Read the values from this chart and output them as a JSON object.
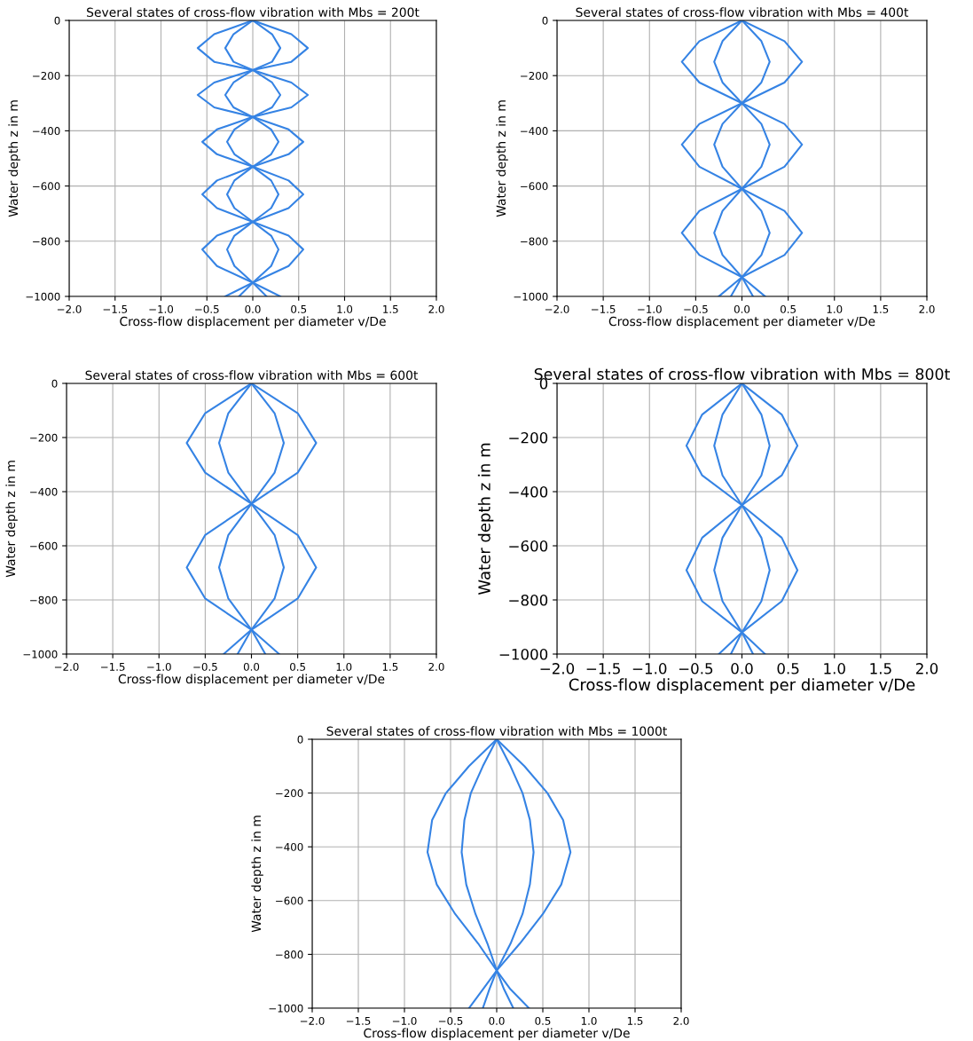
{
  "chart_data": [
    {
      "type": "line",
      "title": "Several states of cross-flow vibration with Mbs = 200t",
      "xlabel": "Cross-flow displacement per diameter v/De",
      "ylabel": "Water depth z in m",
      "xlim": [
        -2,
        2
      ],
      "ylim": [
        -1000,
        0
      ],
      "xticks": [
        {
          "value": -2,
          "label": "−2.0"
        },
        {
          "value": -1.5,
          "label": "−1.5"
        },
        {
          "value": -1,
          "label": "−1.0"
        },
        {
          "value": -0.5,
          "label": "−0.5"
        },
        {
          "value": 0,
          "label": "0.0"
        },
        {
          "value": 0.5,
          "label": "0.5"
        },
        {
          "value": 1,
          "label": "1.0"
        },
        {
          "value": 1.5,
          "label": "1.5"
        },
        {
          "value": 2,
          "label": "2.0"
        }
      ],
      "yticks": [
        {
          "value": -1000,
          "label": "−1000"
        },
        {
          "value": -800,
          "label": "−800"
        },
        {
          "value": -600,
          "label": "−600"
        },
        {
          "value": -400,
          "label": "−400"
        },
        {
          "value": -200,
          "label": "−200"
        },
        0
      ],
      "grid": true,
      "marker": "none",
      "line_style": "solid",
      "series": [
        {
          "color": "#3583e4",
          "x": [
            0,
            0.42,
            0.6,
            0.42,
            0,
            -0.42,
            -0.6,
            -0.42,
            0,
            0.39,
            0.55,
            0.39,
            0,
            -0.39,
            -0.55,
            -0.39,
            0,
            0.39,
            0.55,
            0.39,
            0,
            -0.3
          ],
          "values": [
            0,
            -50,
            -100,
            -150,
            -180,
            -225,
            -270,
            -315,
            -350,
            -395,
            -440,
            -485,
            -530,
            -580,
            -630,
            -680,
            -730,
            -780,
            -830,
            -890,
            -950,
            -1000
          ]
        },
        {
          "color": "#3583e4",
          "x": [
            0,
            0.21,
            0.3,
            0.21,
            0,
            -0.21,
            -0.3,
            -0.21,
            0,
            0.2,
            0.28,
            0.2,
            0,
            -0.2,
            -0.28,
            -0.2,
            0,
            0.2,
            0.28,
            0.2,
            0,
            -0.15
          ],
          "values": [
            0,
            -50,
            -100,
            -150,
            -180,
            -225,
            -270,
            -315,
            -350,
            -395,
            -440,
            -485,
            -530,
            -580,
            -630,
            -680,
            -730,
            -780,
            -830,
            -890,
            -950,
            -1000
          ]
        },
        {
          "color": "#3583e4",
          "x": [
            0,
            -0.21,
            -0.3,
            -0.21,
            0,
            0.21,
            0.3,
            0.21,
            0,
            -0.2,
            -0.28,
            -0.2,
            0,
            0.2,
            0.28,
            0.2,
            0,
            -0.2,
            -0.28,
            -0.2,
            0,
            0.15
          ],
          "values": [
            0,
            -50,
            -100,
            -150,
            -180,
            -225,
            -270,
            -315,
            -350,
            -395,
            -440,
            -485,
            -530,
            -580,
            -630,
            -680,
            -730,
            -780,
            -830,
            -890,
            -950,
            -1000
          ]
        },
        {
          "color": "#3583e4",
          "x": [
            0,
            -0.42,
            -0.6,
            -0.42,
            0,
            0.42,
            0.6,
            0.42,
            0,
            -0.39,
            -0.55,
            -0.39,
            0,
            0.39,
            0.55,
            0.39,
            0,
            -0.39,
            -0.55,
            -0.39,
            0,
            0.3
          ],
          "values": [
            0,
            -50,
            -100,
            -150,
            -180,
            -225,
            -270,
            -315,
            -350,
            -395,
            -440,
            -485,
            -530,
            -580,
            -630,
            -680,
            -730,
            -780,
            -830,
            -890,
            -950,
            -1000
          ]
        }
      ]
    },
    {
      "type": "line",
      "title": "Several states of cross-flow vibration with Mbs = 400t",
      "xlabel": "Cross-flow displacement per diameter v/De",
      "ylabel": "Water depth z in m",
      "xlim": [
        -2,
        2
      ],
      "ylim": [
        -1000,
        0
      ],
      "xticks": [
        {
          "value": -2,
          "label": "−2.0"
        },
        {
          "value": -1.5,
          "label": "−1.5"
        },
        {
          "value": -1,
          "label": "−1.0"
        },
        {
          "value": -0.5,
          "label": "−0.5"
        },
        {
          "value": 0,
          "label": "0.0"
        },
        {
          "value": 0.5,
          "label": "0.5"
        },
        {
          "value": 1,
          "label": "1.0"
        },
        {
          "value": 1.5,
          "label": "1.5"
        },
        {
          "value": 2,
          "label": "2.0"
        }
      ],
      "yticks": [
        {
          "value": -1000,
          "label": "−1000"
        },
        {
          "value": -800,
          "label": "−800"
        },
        {
          "value": -600,
          "label": "−600"
        },
        {
          "value": -400,
          "label": "−400"
        },
        {
          "value": -200,
          "label": "−200"
        },
        0
      ],
      "grid": true,
      "marker": "none",
      "line_style": "solid",
      "series": [
        {
          "color": "#3583e4",
          "x": [
            0,
            0.46,
            0.65,
            0.46,
            0,
            -0.46,
            -0.65,
            -0.46,
            0,
            0.46,
            0.65,
            0.46,
            0,
            -0.25
          ],
          "values": [
            0,
            -75,
            -150,
            -225,
            -300,
            -375,
            -450,
            -530,
            -610,
            -690,
            -770,
            -850,
            -930,
            -1000
          ]
        },
        {
          "color": "#3583e4",
          "x": [
            0,
            0.21,
            0.3,
            0.21,
            0,
            -0.21,
            -0.3,
            -0.21,
            0,
            0.21,
            0.3,
            0.21,
            0,
            -0.12
          ],
          "values": [
            0,
            -75,
            -150,
            -225,
            -300,
            -375,
            -450,
            -530,
            -610,
            -690,
            -770,
            -850,
            -930,
            -1000
          ]
        },
        {
          "color": "#3583e4",
          "x": [
            0,
            -0.21,
            -0.3,
            -0.21,
            0,
            0.21,
            0.3,
            0.21,
            0,
            -0.21,
            -0.3,
            -0.21,
            0,
            0.12
          ],
          "values": [
            0,
            -75,
            -150,
            -225,
            -300,
            -375,
            -450,
            -530,
            -610,
            -690,
            -770,
            -850,
            -930,
            -1000
          ]
        },
        {
          "color": "#3583e4",
          "x": [
            0,
            -0.46,
            -0.65,
            -0.46,
            0,
            0.46,
            0.65,
            0.46,
            0,
            -0.46,
            -0.65,
            -0.46,
            0,
            0.25
          ],
          "values": [
            0,
            -75,
            -150,
            -225,
            -300,
            -375,
            -450,
            -530,
            -610,
            -690,
            -770,
            -850,
            -930,
            -1000
          ]
        }
      ]
    },
    {
      "type": "line",
      "title": "Several states of cross-flow vibration with Mbs = 600t",
      "xlabel": "Cross-flow displacement per diameter v/De",
      "ylabel": "Water depth z in m",
      "xlim": [
        -2,
        2
      ],
      "ylim": [
        -1000,
        0
      ],
      "xticks": [
        {
          "value": -2,
          "label": "−2.0"
        },
        {
          "value": -1.5,
          "label": "−1.5"
        },
        {
          "value": -1,
          "label": "−1.0"
        },
        {
          "value": -0.5,
          "label": "−0.5"
        },
        {
          "value": 0,
          "label": "0.0"
        },
        {
          "value": 0.5,
          "label": "0.5"
        },
        {
          "value": 1,
          "label": "1.0"
        },
        {
          "value": 1.5,
          "label": "1.5"
        },
        {
          "value": 2,
          "label": "2.0"
        }
      ],
      "yticks": [
        {
          "value": -1000,
          "label": "−1000"
        },
        {
          "value": -800,
          "label": "−800"
        },
        {
          "value": -600,
          "label": "−600"
        },
        {
          "value": -400,
          "label": "−400"
        },
        {
          "value": -200,
          "label": "−200"
        },
        0
      ],
      "grid": true,
      "marker": "none",
      "line_style": "solid",
      "series": [
        {
          "color": "#3583e4",
          "x": [
            0,
            0.5,
            0.7,
            0.5,
            0,
            -0.5,
            -0.7,
            -0.5,
            0,
            0.3
          ],
          "values": [
            0,
            -110,
            -220,
            -330,
            -445,
            -560,
            -680,
            -795,
            -910,
            -1000
          ]
        },
        {
          "color": "#3583e4",
          "x": [
            0,
            0.25,
            0.35,
            0.25,
            0,
            -0.25,
            -0.35,
            -0.25,
            0,
            0.15
          ],
          "values": [
            0,
            -110,
            -220,
            -330,
            -445,
            -560,
            -680,
            -795,
            -910,
            -1000
          ]
        },
        {
          "color": "#3583e4",
          "x": [
            0,
            -0.25,
            -0.35,
            -0.25,
            0,
            0.25,
            0.35,
            0.25,
            0,
            -0.15
          ],
          "values": [
            0,
            -110,
            -220,
            -330,
            -445,
            -560,
            -680,
            -795,
            -910,
            -1000
          ]
        },
        {
          "color": "#3583e4",
          "x": [
            0,
            -0.5,
            -0.7,
            -0.5,
            0,
            0.5,
            0.7,
            0.5,
            0,
            -0.3
          ],
          "values": [
            0,
            -110,
            -220,
            -330,
            -445,
            -560,
            -680,
            -795,
            -910,
            -1000
          ]
        }
      ]
    },
    {
      "type": "line",
      "title": "Several states of cross-flow vibration with Mbs = 800t",
      "xlabel": "Cross-flow displacement per diameter v/De",
      "ylabel": "Water depth z in m",
      "xlim": [
        -2,
        2
      ],
      "ylim": [
        -1000,
        0
      ],
      "xticks": [
        {
          "value": -2,
          "label": "−2.0"
        },
        {
          "value": -1.5,
          "label": "−1.5"
        },
        {
          "value": -1,
          "label": "−1.0"
        },
        {
          "value": -0.5,
          "label": "−0.5"
        },
        {
          "value": 0,
          "label": "0.0"
        },
        {
          "value": 0.5,
          "label": "0.5"
        },
        {
          "value": 1,
          "label": "1.0"
        },
        {
          "value": 1.5,
          "label": "1.5"
        },
        {
          "value": 2,
          "label": "2.0"
        }
      ],
      "yticks": [
        {
          "value": -1000,
          "label": "−1000"
        },
        {
          "value": -800,
          "label": "−800"
        },
        {
          "value": -600,
          "label": "−600"
        },
        {
          "value": -400,
          "label": "−400"
        },
        {
          "value": -200,
          "label": "−200"
        },
        0
      ],
      "grid": true,
      "marker": "none",
      "line_style": "solid",
      "series": [
        {
          "color": "#3583e4",
          "x": [
            0,
            0.43,
            0.6,
            0.43,
            0,
            -0.43,
            -0.6,
            -0.43,
            0,
            0.25
          ],
          "values": [
            0,
            -115,
            -230,
            -340,
            -450,
            -570,
            -690,
            -805,
            -920,
            -1000
          ]
        },
        {
          "color": "#3583e4",
          "x": [
            0,
            0.21,
            0.3,
            0.21,
            0,
            -0.21,
            -0.3,
            -0.21,
            0,
            0.12
          ],
          "values": [
            0,
            -115,
            -230,
            -340,
            -450,
            -570,
            -690,
            -805,
            -920,
            -1000
          ]
        },
        {
          "color": "#3583e4",
          "x": [
            0,
            -0.21,
            -0.3,
            -0.21,
            0,
            0.21,
            0.3,
            0.21,
            0,
            -0.12
          ],
          "values": [
            0,
            -115,
            -230,
            -340,
            -450,
            -570,
            -690,
            -805,
            -920,
            -1000
          ]
        },
        {
          "color": "#3583e4",
          "x": [
            0,
            -0.43,
            -0.6,
            -0.43,
            0,
            0.43,
            0.6,
            0.43,
            0,
            -0.25
          ],
          "values": [
            0,
            -115,
            -230,
            -340,
            -450,
            -570,
            -690,
            -805,
            -920,
            -1000
          ]
        }
      ]
    },
    {
      "type": "line",
      "title": "Several states of cross-flow vibration with Mbs = 1000t",
      "xlabel": "Cross-flow displacement per diameter v/De",
      "ylabel": "Water depth z in m",
      "xlim": [
        -2,
        2
      ],
      "ylim": [
        -1000,
        0
      ],
      "xticks": [
        {
          "value": -2,
          "label": "−2.0"
        },
        {
          "value": -1.5,
          "label": "−1.5"
        },
        {
          "value": -1,
          "label": "−1.0"
        },
        {
          "value": -0.5,
          "label": "−0.5"
        },
        {
          "value": 0,
          "label": "0.0"
        },
        {
          "value": 0.5,
          "label": "0.5"
        },
        {
          "value": 1,
          "label": "1.0"
        },
        {
          "value": 1.5,
          "label": "1.5"
        },
        {
          "value": 2,
          "label": "2.0"
        }
      ],
      "yticks": [
        {
          "value": -1000,
          "label": "−1000"
        },
        {
          "value": -800,
          "label": "−800"
        },
        {
          "value": -600,
          "label": "−600"
        },
        {
          "value": -400,
          "label": "−400"
        },
        {
          "value": -200,
          "label": "−200"
        },
        0
      ],
      "grid": true,
      "marker": "none",
      "line_style": "solid",
      "series": [
        {
          "color": "#3583e4",
          "x": [
            0,
            0.3,
            0.55,
            0.72,
            0.8,
            0.7,
            0.5,
            0.25,
            0,
            0.15,
            0.35
          ],
          "values": [
            0,
            -100,
            -200,
            -300,
            -420,
            -540,
            -650,
            -760,
            -860,
            -930,
            -1000
          ]
        },
        {
          "color": "#3583e4",
          "x": [
            0,
            0.15,
            0.28,
            0.36,
            0.4,
            0.36,
            0.28,
            0.15,
            0,
            0.08,
            0.18
          ],
          "values": [
            0,
            -100,
            -200,
            -300,
            -420,
            -540,
            -650,
            -760,
            -860,
            -930,
            -1000
          ]
        },
        {
          "color": "#3583e4",
          "x": [
            0,
            -0.15,
            -0.28,
            -0.35,
            -0.38,
            -0.33,
            -0.23,
            -0.1,
            0,
            -0.08,
            -0.15
          ],
          "values": [
            0,
            -100,
            -200,
            -300,
            -420,
            -540,
            -650,
            -760,
            -860,
            -930,
            -1000
          ]
        },
        {
          "color": "#3583e4",
          "x": [
            0,
            -0.3,
            -0.55,
            -0.7,
            -0.75,
            -0.65,
            -0.45,
            -0.2,
            0,
            -0.15,
            -0.3
          ],
          "values": [
            0,
            -100,
            -200,
            -300,
            -420,
            -540,
            -650,
            -760,
            -860,
            -930,
            -1000
          ]
        }
      ]
    }
  ]
}
